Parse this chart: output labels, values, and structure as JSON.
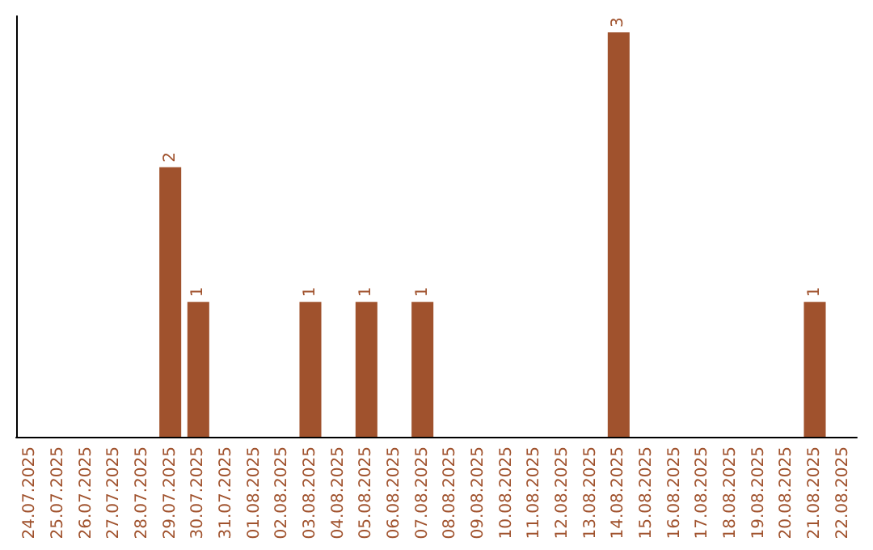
{
  "chart_data": {
    "type": "bar",
    "categories": [
      "24.07.2025",
      "25.07.2025",
      "26.07.2025",
      "27.07.2025",
      "28.07.2025",
      "29.07.2025",
      "30.07.2025",
      "31.07.2025",
      "01.08.2025",
      "02.08.2025",
      "03.08.2025",
      "04.08.2025",
      "05.08.2025",
      "06.08.2025",
      "07.08.2025",
      "08.08.2025",
      "09.08.2025",
      "10.08.2025",
      "11.08.2025",
      "12.08.2025",
      "13.08.2025",
      "14.08.2025",
      "15.08.2025",
      "16.08.2025",
      "17.08.2025",
      "18.08.2025",
      "19.08.2025",
      "20.08.2025",
      "21.08.2025",
      "22.08.2025"
    ],
    "values": [
      0,
      0,
      0,
      0,
      0,
      2,
      1,
      0,
      0,
      0,
      1,
      0,
      1,
      0,
      1,
      0,
      0,
      0,
      0,
      0,
      0,
      3,
      0,
      0,
      0,
      0,
      0,
      0,
      1,
      0
    ],
    "value_labels": [
      null,
      null,
      null,
      null,
      null,
      "2",
      "1",
      null,
      null,
      null,
      "1",
      null,
      "1",
      null,
      "1",
      null,
      null,
      null,
      null,
      null,
      null,
      "3",
      null,
      null,
      null,
      null,
      null,
      null,
      "1",
      null
    ],
    "color": "#a0522d",
    "tick_labels": "x"
  }
}
